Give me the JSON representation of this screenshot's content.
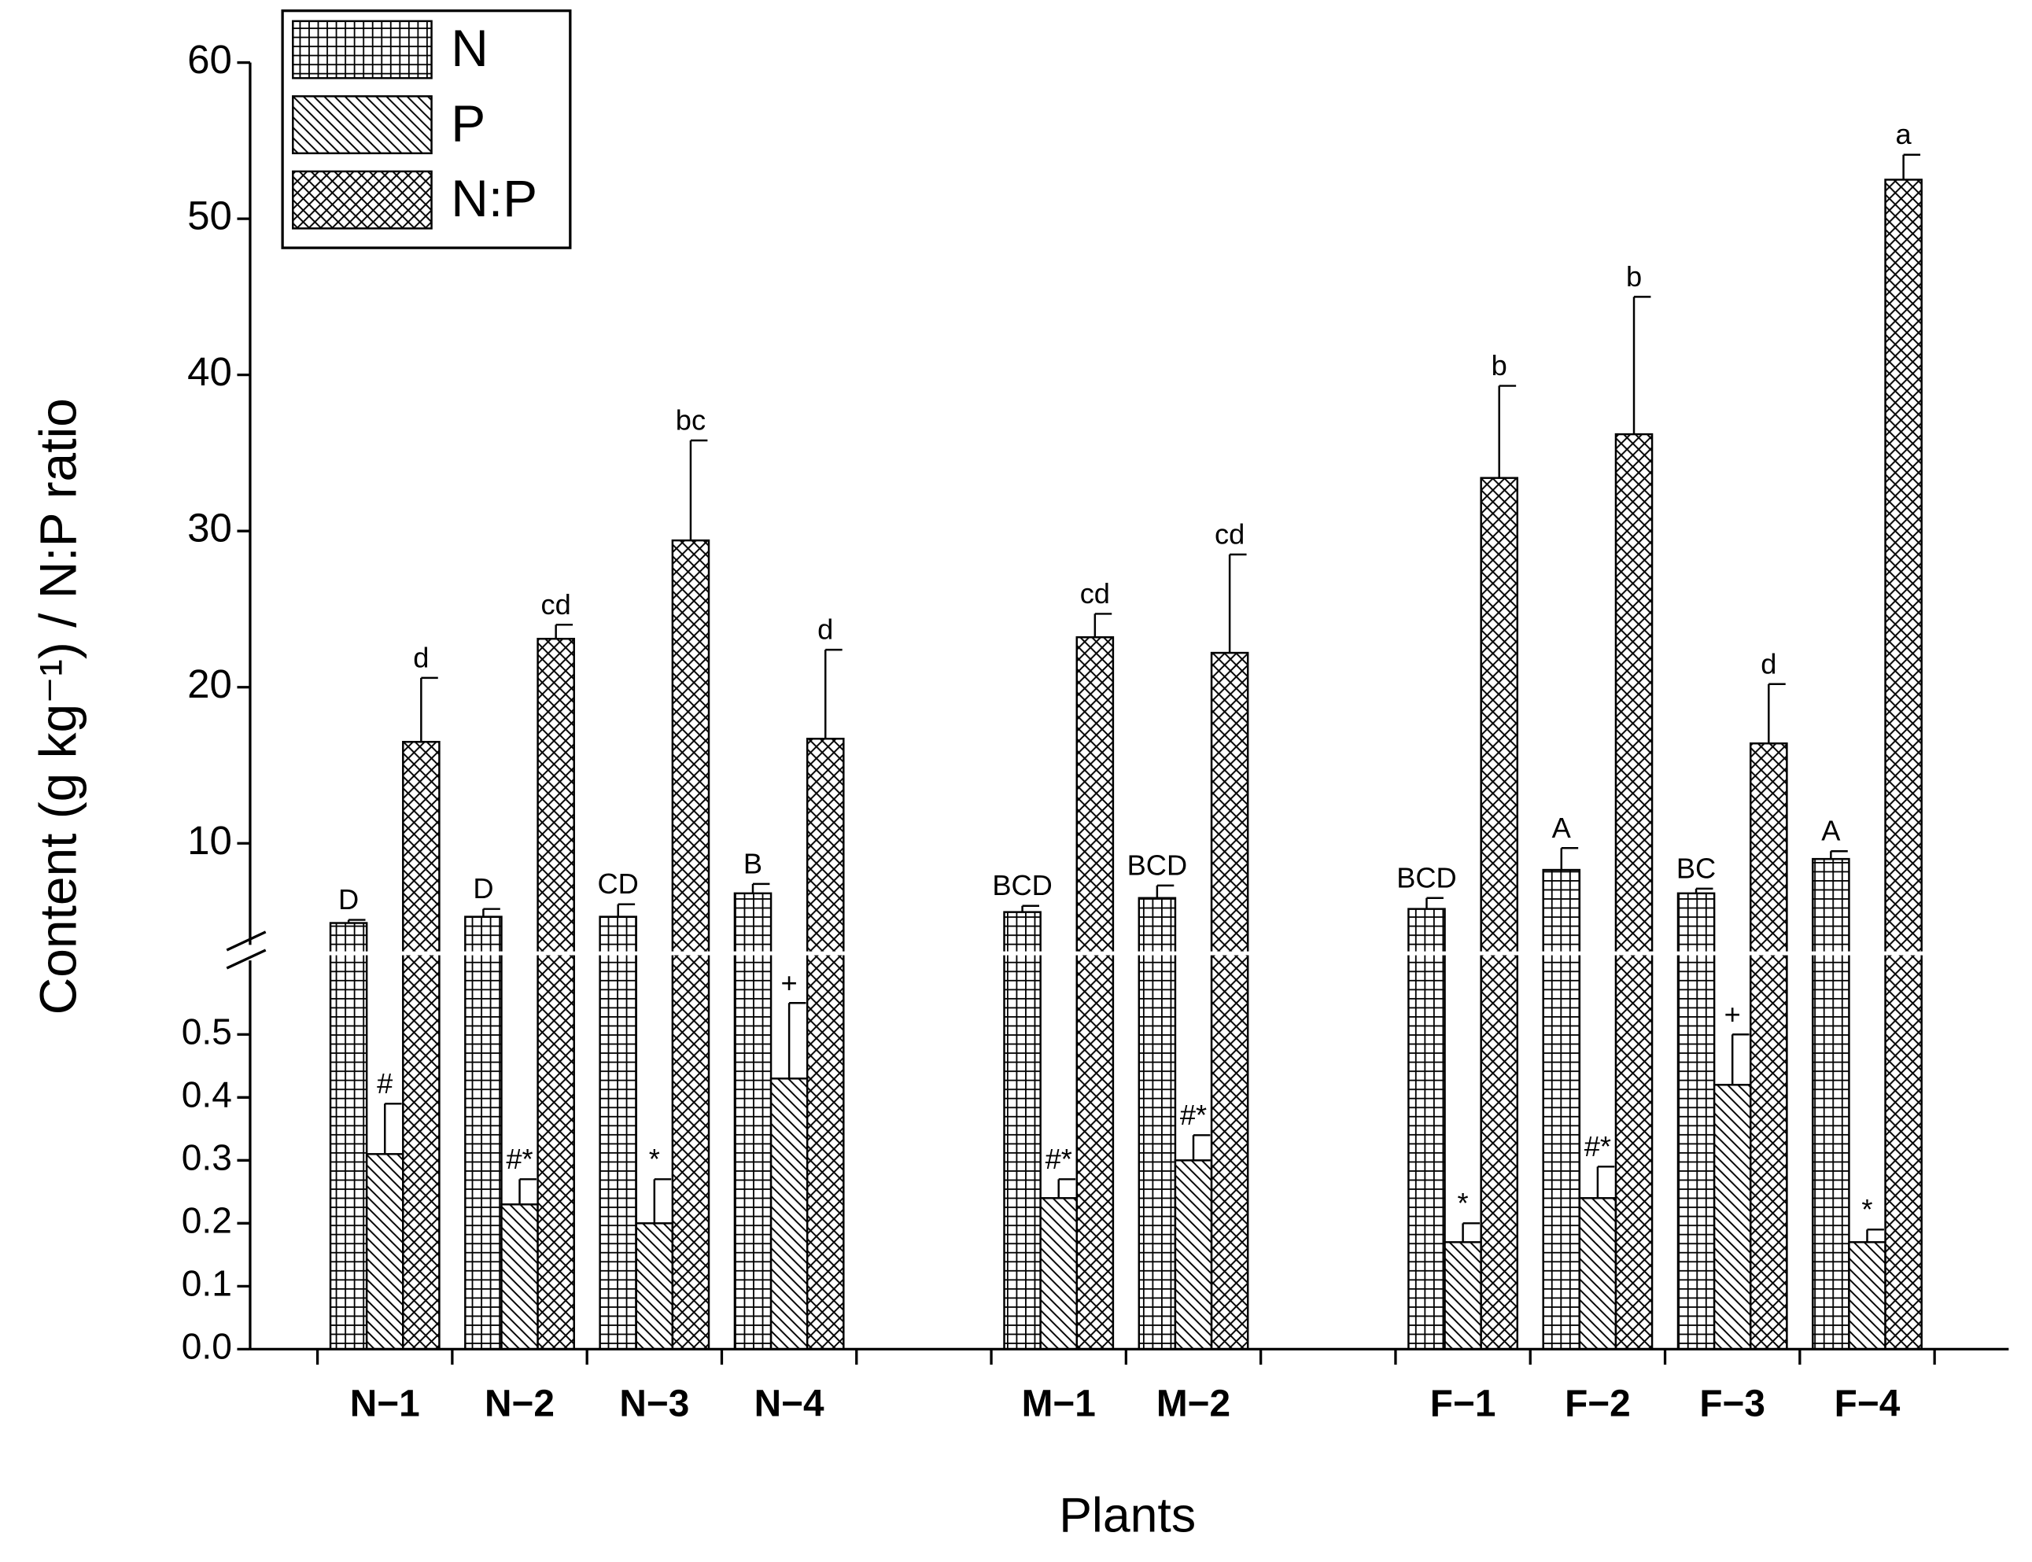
{
  "chart_data": {
    "type": "bar",
    "xlabel": "Plants",
    "ylabel": "Content (g kg⁻¹) / N:P ratio",
    "categories": [
      "N−1",
      "N−2",
      "N−3",
      "N−4",
      null,
      "M−1",
      "M−2",
      null,
      "F−1",
      "F−2",
      "F−3",
      "F−4"
    ],
    "ylim": [
      0,
      60
    ],
    "ybreak": [
      0.63,
      3
    ],
    "yticks": [
      {
        "value": 0,
        "label": "0.0"
      },
      0.1,
      0.2,
      0.3,
      0.4,
      0.5,
      10,
      20,
      30,
      40,
      50,
      60
    ],
    "legend": "upper left",
    "series": [
      {
        "name": "N",
        "color": "#000000",
        "hatch": "grid",
        "values": [
          4.9,
          5.3,
          5.3,
          6.8,
          null,
          5.6,
          6.5,
          null,
          5.8,
          8.3,
          6.8,
          9.0
        ],
        "errors": [
          0.2,
          0.5,
          0.8,
          0.6,
          null,
          0.4,
          0.8,
          null,
          0.7,
          1.4,
          0.3,
          0.5
        ],
        "labels": [
          "D",
          "D",
          "CD",
          "B",
          null,
          "BCD",
          "BCD",
          null,
          "BCD",
          "A",
          "BC",
          "A"
        ]
      },
      {
        "name": "P",
        "color": "#000000",
        "hatch": "diagonal",
        "values": [
          0.31,
          0.23,
          0.2,
          0.43,
          null,
          0.24,
          0.3,
          null,
          0.17,
          0.24,
          0.42,
          0.17
        ],
        "errors": [
          0.08,
          0.04,
          0.07,
          0.12,
          null,
          0.03,
          0.04,
          null,
          0.03,
          0.05,
          0.08,
          0.02
        ],
        "labels": [
          "#",
          "#*",
          "*",
          "+",
          null,
          "#*",
          "#*",
          null,
          "*",
          "#*",
          "+",
          "*"
        ]
      },
      {
        "name": "N:P",
        "color": "#000000",
        "hatch": "cross",
        "values": [
          16.5,
          23.1,
          29.4,
          16.7,
          null,
          23.2,
          22.2,
          null,
          33.4,
          36.2,
          16.4,
          52.5
        ],
        "errors": [
          4.1,
          0.9,
          6.4,
          5.7,
          null,
          1.5,
          6.3,
          null,
          5.9,
          8.8,
          3.8,
          1.6
        ],
        "labels": [
          "d",
          "cd",
          "bc",
          "d",
          null,
          "cd",
          "cd",
          null,
          "b",
          "b",
          "d",
          "a"
        ]
      }
    ]
  }
}
